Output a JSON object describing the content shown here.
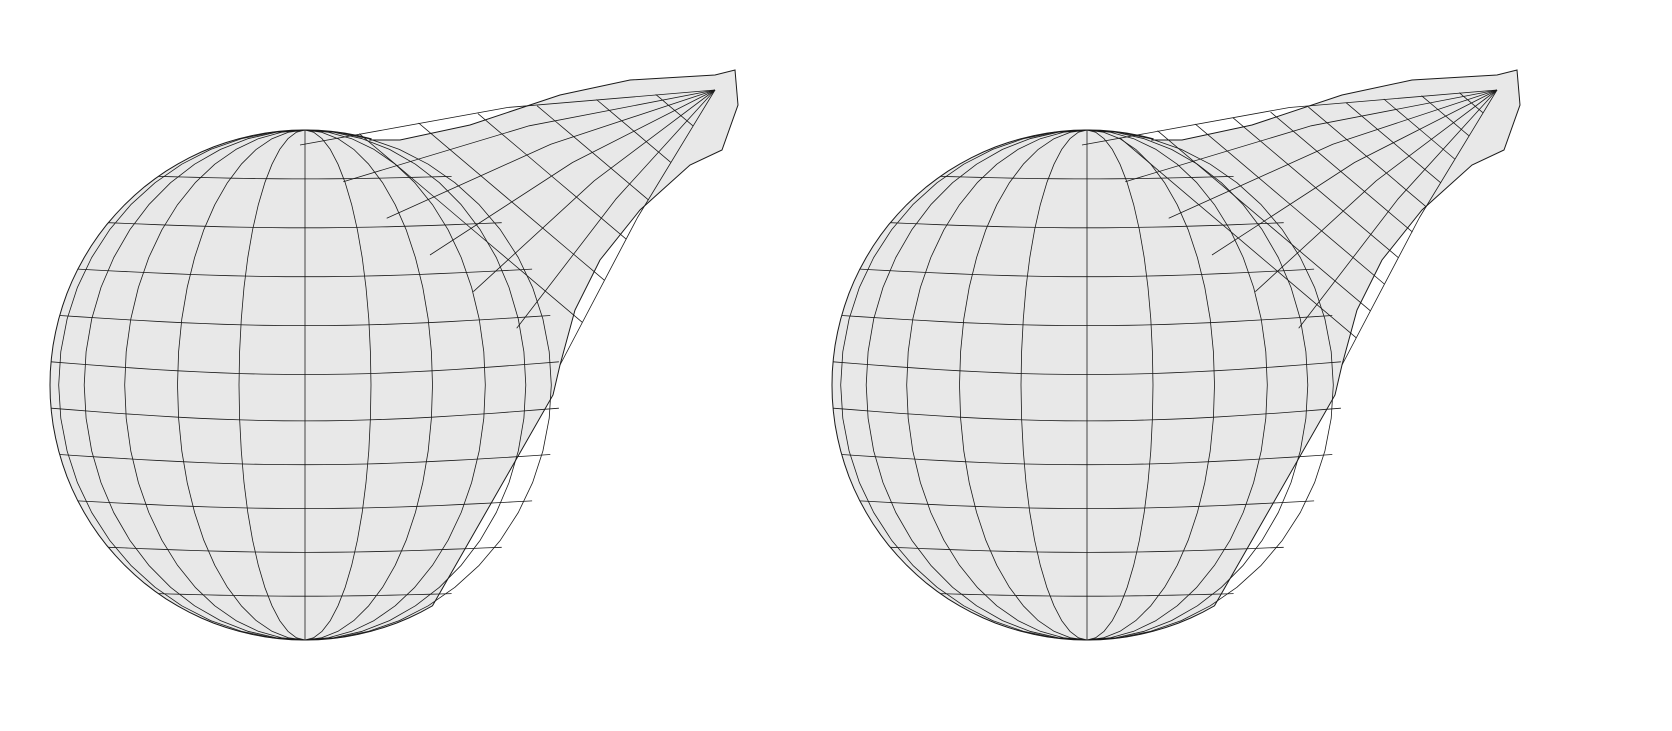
{
  "figure": {
    "panels": [
      {
        "id": "left",
        "mesh": "coarse",
        "tip_rows": 2
      },
      {
        "id": "right",
        "mesh": "refined",
        "tip_rows": 4
      }
    ],
    "colors": {
      "surface": "#e8e8e8",
      "edges": "#1a1a1a",
      "background": "#ffffff"
    }
  }
}
